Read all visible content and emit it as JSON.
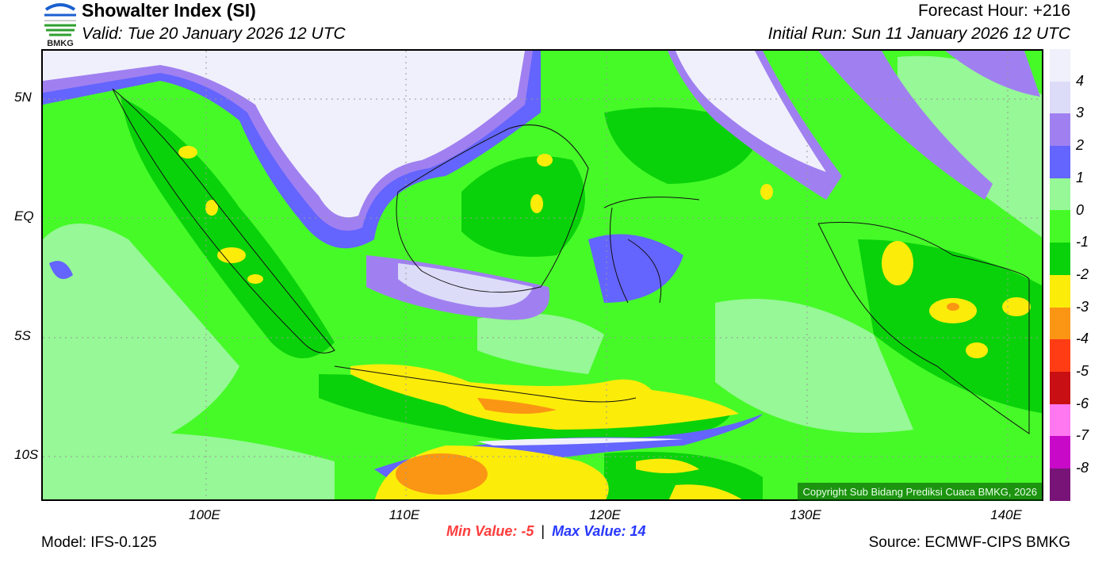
{
  "header": {
    "title": "Showalter Index (SI)",
    "valid": "Valid: Tue 20 January 2026 12 UTC",
    "forecast_hour": "Forecast Hour: +216",
    "initial_run": "Initial Run: Sun 11 January 2026 12 UTC",
    "logo_text": "BMKG"
  },
  "axes": {
    "lat_ticks": [
      "5N",
      "EQ",
      "5S",
      "10S"
    ],
    "lon_ticks": [
      "100E",
      "110E",
      "120E",
      "130E",
      "140E"
    ]
  },
  "colorbar": {
    "labels": [
      "4",
      "3",
      "2",
      "1",
      "0",
      "-1",
      "-2",
      "-3",
      "-4",
      "-5",
      "-6",
      "-7",
      "-8"
    ],
    "colors": [
      "#f0f0fc",
      "#dcdcf8",
      "#a080f0",
      "#6464ff",
      "#96f896",
      "#46fa28",
      "#0ad20a",
      "#fcec0a",
      "#fa9614",
      "#ff3c14",
      "#c80f14",
      "#ff78f0",
      "#c80ac8",
      "#781478"
    ]
  },
  "footer": {
    "min_label": "Min Value:  -5",
    "separator": "|",
    "max_label": "Max Value:  14",
    "model": "Model: IFS-0.125",
    "source": "Source: ECMWF-CIPS BMKG",
    "copyright": "Copyright Sub Bidang Prediksi Cuaca BMKG, 2026"
  },
  "colors": {
    "min": "#ff3c3c",
    "max": "#2838ff"
  }
}
